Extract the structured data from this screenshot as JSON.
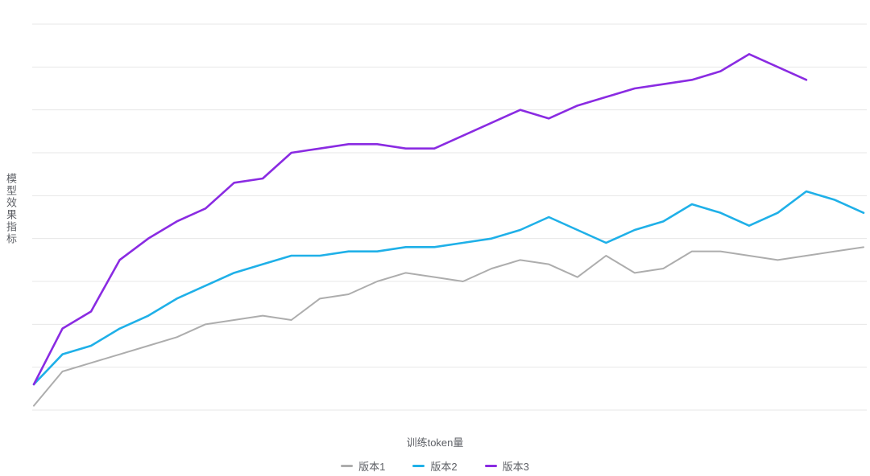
{
  "chart_data": {
    "type": "line",
    "title": "",
    "xlabel": "训练token量",
    "ylabel": "模型效果指标",
    "x_count": 30,
    "ylim": [
      0,
      90
    ],
    "grid_step": 10,
    "grid": true,
    "legend_position": "bottom",
    "series": [
      {
        "name": "版本1",
        "color": "#adadad",
        "values": [
          1,
          9,
          11,
          13,
          15,
          17,
          20,
          21,
          22,
          21,
          26,
          27,
          30,
          32,
          31,
          30,
          33,
          35,
          34,
          31,
          36,
          32,
          33,
          37,
          37,
          36,
          35,
          36,
          37,
          38
        ]
      },
      {
        "name": "版本2",
        "color": "#1fb0e8",
        "values": [
          6,
          13,
          15,
          19,
          22,
          26,
          29,
          32,
          34,
          36,
          36,
          37,
          37,
          38,
          38,
          39,
          40,
          42,
          45,
          42,
          39,
          42,
          44,
          48,
          46,
          43,
          46,
          51,
          49,
          46
        ]
      },
      {
        "name": "版本3",
        "color": "#8a2be2",
        "values": [
          6,
          19,
          23,
          35,
          40,
          44,
          47,
          53,
          54,
          60,
          61,
          62,
          62,
          61,
          61,
          64,
          67,
          70,
          68,
          71,
          73,
          75,
          76,
          77,
          79,
          83,
          80,
          77
        ]
      }
    ]
  }
}
